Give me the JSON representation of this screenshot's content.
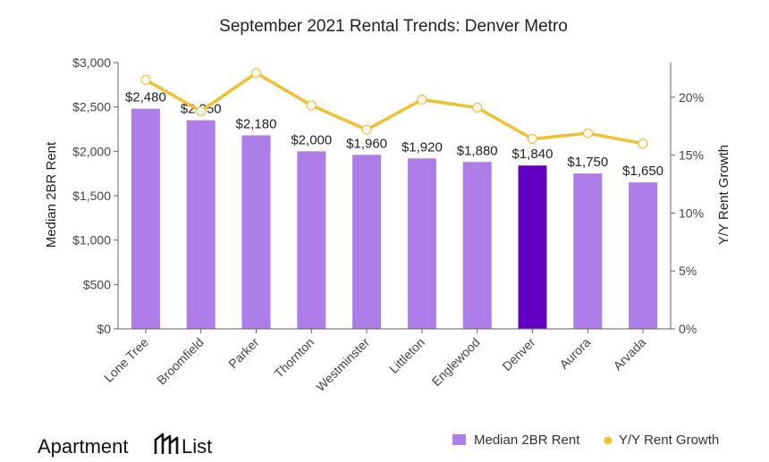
{
  "chart_data": {
    "type": "bar",
    "title": "September 2021 Rental Trends: Denver Metro",
    "categories": [
      "Lone Tree",
      "Broomfield",
      "Parker",
      "Thornton",
      "Westminster",
      "Littleton",
      "Englewood",
      "Denver",
      "Aurora",
      "Arvada"
    ],
    "series": [
      {
        "name": "Median 2BR Rent",
        "type": "bar",
        "axis": "left",
        "values": [
          2480,
          2350,
          2180,
          2000,
          1960,
          1920,
          1880,
          1840,
          1750,
          1650
        ],
        "labels": [
          "$2,480",
          "$2,350",
          "$2,180",
          "$2,000",
          "$1,960",
          "$1,920",
          "$1,880",
          "$1,840",
          "$1,750",
          "$1,650"
        ]
      },
      {
        "name": "Y/Y Rent Growth",
        "type": "line",
        "axis": "right",
        "values": [
          21.5,
          18.8,
          22.1,
          19.3,
          17.2,
          19.8,
          19.1,
          16.4,
          16.9,
          16.0
        ]
      }
    ],
    "ylabel": "Median 2BR Rent",
    "y2label": "Y/Y Rent Growth",
    "ylim": [
      0,
      3000
    ],
    "y2lim": [
      0,
      23
    ],
    "yticks": [
      "$0",
      "$500",
      "$1,000",
      "$1,500",
      "$2,000",
      "$2,500",
      "$3,000"
    ],
    "y2ticks": [
      "0%",
      "5%",
      "10%",
      "15%",
      "20%"
    ],
    "highlight_category": "Denver",
    "grid": false,
    "legend_position": "bottom-right",
    "colors": {
      "bar": "#ad7de8",
      "bar_highlight": "#6200c4",
      "line": "#f0c030",
      "marker_fill": "#fffbe8",
      "axis": "#666666"
    }
  },
  "brand": {
    "name_left": "Apartment",
    "name_right": "List",
    "icon": "apartment-list-logo-icon"
  }
}
